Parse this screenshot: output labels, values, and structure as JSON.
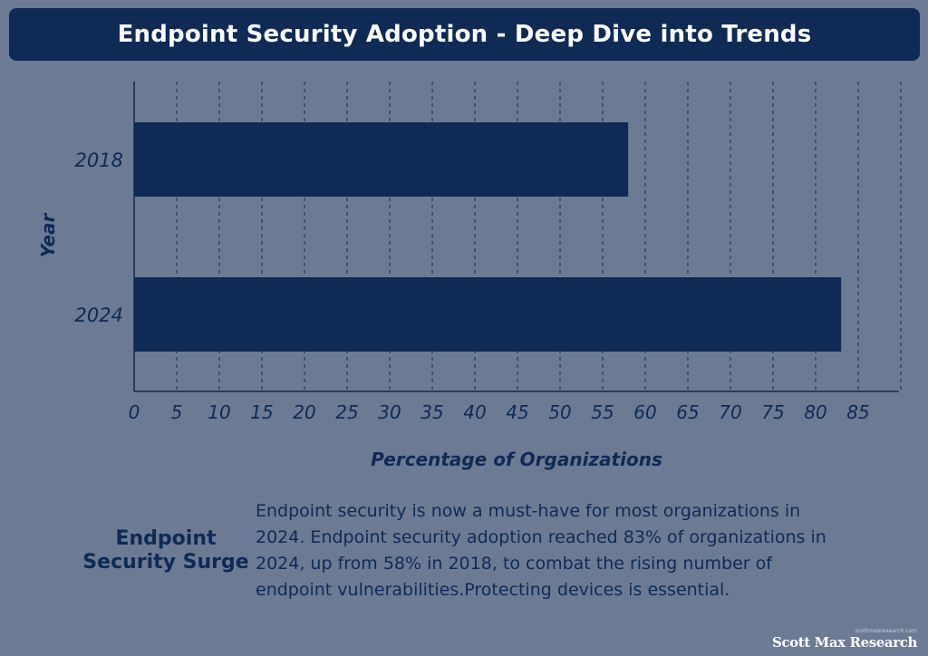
{
  "header": {
    "title": "Endpoint Security Adoption - Deep Dive into Trends"
  },
  "chart_data": {
    "type": "bar",
    "orientation": "horizontal",
    "title": "Endpoint Security Adoption - Deep Dive into Trends",
    "categories": [
      "2018",
      "2024"
    ],
    "values": [
      58,
      83
    ],
    "xlabel": "Percentage of Organizations",
    "ylabel": "Year",
    "xlim": [
      0,
      90
    ],
    "xticks": [
      "0",
      "5",
      "10",
      "15",
      "20",
      "25",
      "30",
      "35",
      "40",
      "45",
      "50",
      "55",
      "60",
      "65",
      "70",
      "75",
      "80",
      "85"
    ],
    "grid": "vertical dashed",
    "colors": {
      "bar": "#0e2a55",
      "text": "#0e2a55",
      "grid": "#0e2a55"
    }
  },
  "summary": {
    "heading": "Endpoint Security Surge",
    "text": "Endpoint security is now a must-have for most organizations in 2024.  Endpoint security adoption reached 83% of organizations in 2024, up from 58% in 2018, to combat the rising number of endpoint vulnerabilities.Protecting devices is essential."
  },
  "watermark": {
    "small": "scottmaxresearch.com",
    "brand": "Scott Max Research"
  },
  "colors": {
    "background": "#6d7a94",
    "header_bg": "#0e2a55",
    "accent": "#0e2a55"
  }
}
